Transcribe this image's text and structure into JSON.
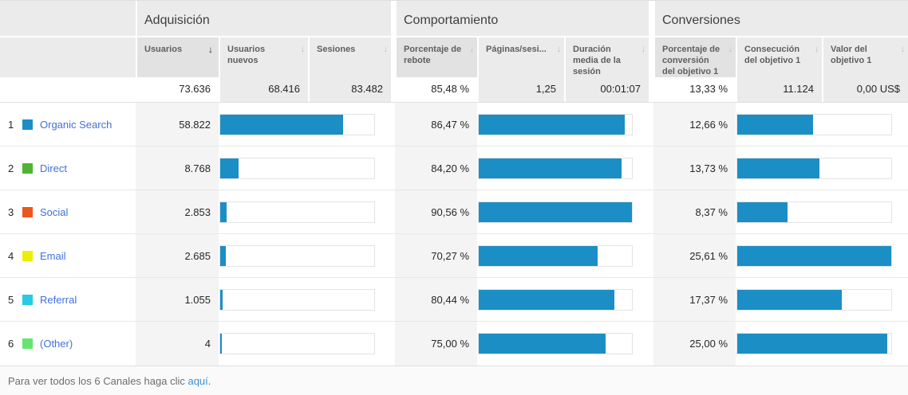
{
  "colors": {
    "bar": "#1b8ec6",
    "channel_swatches": [
      "#1b8ec6",
      "#50b432",
      "#ed561b",
      "#edef00",
      "#24cbe5",
      "#64e572"
    ],
    "link": "#4170d8",
    "footer_link": "#3c91d7"
  },
  "groups": [
    {
      "title": "Adquisición"
    },
    {
      "title": "Comportamiento"
    },
    {
      "title": "Conversiones"
    }
  ],
  "columns": [
    {
      "id": "usuarios",
      "label": "Usuarios",
      "sorted": "descending"
    },
    {
      "id": "usuarios_nuevos",
      "label": "Usuarios nuevos"
    },
    {
      "id": "sesiones",
      "label": "Sesiones"
    },
    {
      "id": "rebote",
      "label": "Porcentaje de rebote"
    },
    {
      "id": "paginas_sesion",
      "label": "Páginas/sesi..."
    },
    {
      "id": "duracion",
      "label": "Duración media de la sesión"
    },
    {
      "id": "conversion",
      "label": "Porcentaje de conversión del objetivo 1"
    },
    {
      "id": "consecucion",
      "label": "Consecución del objetivo 1"
    },
    {
      "id": "valor",
      "label": "Valor del objetivo 1"
    }
  ],
  "totals": {
    "usuarios": "73.636",
    "usuarios_nuevos": "68.416",
    "sesiones": "83.482",
    "rebote": "85,48 %",
    "paginas_sesion": "1,25",
    "duracion": "00:01:07",
    "conversion": "13,33 %",
    "consecucion": "11.124",
    "valor": "0,00 US$"
  },
  "rows": [
    {
      "index": "1",
      "label": "Organic Search",
      "usuarios": "58.822",
      "rebote": "86,47 %",
      "conversion": "12,66 %",
      "bars": {
        "usuarios": 79.9,
        "rebote": 95.5,
        "conversion": 49.4
      }
    },
    {
      "index": "2",
      "label": "Direct",
      "usuarios": "8.768",
      "rebote": "84,20 %",
      "conversion": "13,73 %",
      "bars": {
        "usuarios": 11.9,
        "rebote": 93.0,
        "conversion": 53.6
      }
    },
    {
      "index": "3",
      "label": "Social",
      "usuarios": "2.853",
      "rebote": "90,56 %",
      "conversion": "8,37 %",
      "bars": {
        "usuarios": 3.9,
        "rebote": 100,
        "conversion": 32.7
      }
    },
    {
      "index": "4",
      "label": "Email",
      "usuarios": "2.685",
      "rebote": "70,27 %",
      "conversion": "25,61 %",
      "bars": {
        "usuarios": 3.6,
        "rebote": 77.6,
        "conversion": 100
      }
    },
    {
      "index": "5",
      "label": "Referral",
      "usuarios": "1.055",
      "rebote": "80,44 %",
      "conversion": "17,37 %",
      "bars": {
        "usuarios": 1.4,
        "rebote": 88.8,
        "conversion": 67.8
      }
    },
    {
      "index": "6",
      "label": "(Other)",
      "usuarios": "4",
      "rebote": "75,00 %",
      "conversion": "25,00 %",
      "bars": {
        "usuarios": 1.0,
        "rebote": 82.8,
        "conversion": 97.6
      }
    }
  ],
  "footer": {
    "before": "Para ver todos los 6 Canales haga clic ",
    "link": "aquí",
    "after": "."
  },
  "chart_data": {
    "type": "table",
    "title": "Canales — Adquisición / Comportamiento / Conversiones",
    "categories": [
      "Organic Search",
      "Direct",
      "Social",
      "Email",
      "Referral",
      "(Other)"
    ],
    "series": [
      {
        "name": "Usuarios",
        "values": [
          58822,
          8768,
          2853,
          2685,
          1055,
          4
        ]
      },
      {
        "name": "Porcentaje de rebote (%)",
        "values": [
          86.47,
          84.2,
          90.56,
          70.27,
          80.44,
          75.0
        ]
      },
      {
        "name": "Porcentaje de conversión del objetivo 1 (%)",
        "values": [
          12.66,
          13.73,
          8.37,
          25.61,
          17.37,
          25.0
        ]
      }
    ],
    "totals": {
      "usuarios": 73636,
      "usuarios_nuevos": 68416,
      "sesiones": 83482,
      "rebote_pct": 85.48,
      "paginas_sesion": 1.25,
      "duracion_media": "00:01:07",
      "conversion_pct": 13.33,
      "consecucion": 11124,
      "valor": "0,00 US$"
    },
    "layout": "bars are horizontal, blue, scaled: Usuarios vs total, rebote vs max 90.56, conversion vs max 25.61"
  }
}
